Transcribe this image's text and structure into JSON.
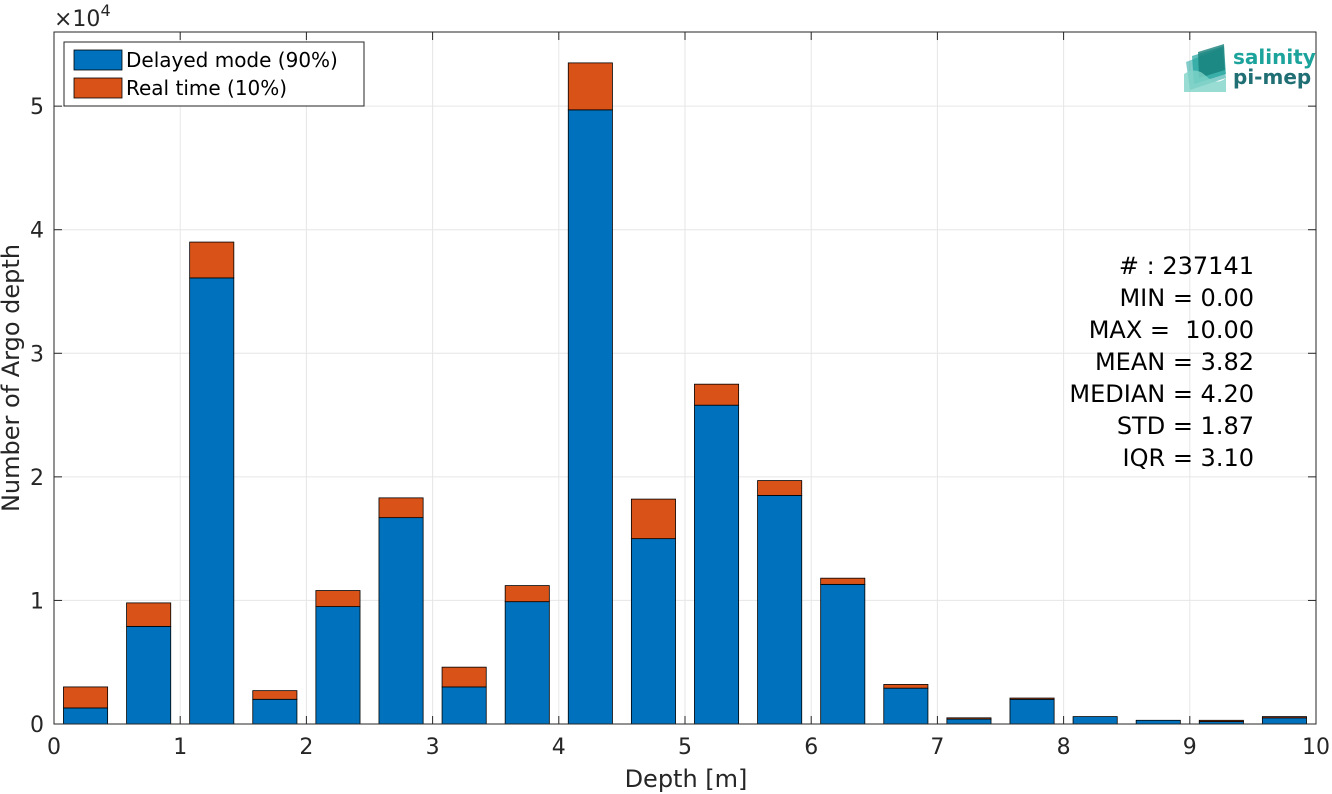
{
  "chart_data": {
    "type": "bar",
    "stacked": true,
    "xlabel": "Depth [m]",
    "ylabel": "Number of Argo depth",
    "xlim": [
      0,
      10
    ],
    "ylim": [
      0,
      56000
    ],
    "x_ticks": [
      0,
      1,
      2,
      3,
      4,
      5,
      6,
      7,
      8,
      9,
      10
    ],
    "y_ticks": [
      0,
      10000,
      20000,
      30000,
      40000,
      50000
    ],
    "y_tick_labels": [
      "0",
      "1",
      "2",
      "3",
      "4",
      "5"
    ],
    "y_exponent_prefix": "×10",
    "y_exponent": "4",
    "grid": true,
    "legend_position": "top-left",
    "bin_width": 0.5,
    "x": [
      0.25,
      0.75,
      1.25,
      1.75,
      2.25,
      2.75,
      3.25,
      3.75,
      4.25,
      4.75,
      5.25,
      5.75,
      6.25,
      6.75,
      7.25,
      7.75,
      8.25,
      8.75,
      9.25,
      9.75
    ],
    "series": [
      {
        "name": "Delayed mode (90%)",
        "color": "#0072BD",
        "values": [
          1300,
          7900,
          36100,
          2000,
          9500,
          16700,
          3000,
          9900,
          49700,
          15000,
          25800,
          18500,
          11300,
          2900,
          400,
          2000,
          600,
          300,
          200,
          500
        ]
      },
      {
        "name": "Real time (10%)",
        "color": "#D95319",
        "values": [
          1700,
          1900,
          2900,
          700,
          1300,
          1600,
          1600,
          1300,
          3800,
          3200,
          1700,
          1200,
          500,
          300,
          100,
          100,
          0,
          0,
          100,
          100
        ]
      }
    ],
    "stats": [
      "# : 237141",
      "MIN = 0.00",
      "MAX =  10.00",
      "MEAN = 3.82",
      "MEDIAN = 4.20",
      "STD = 1.87",
      "IQR = 3.10"
    ]
  },
  "logo": {
    "line1": "salinity",
    "line2": "pi-mep",
    "color1": "#1BA39C",
    "color2": "#1F6F74"
  }
}
